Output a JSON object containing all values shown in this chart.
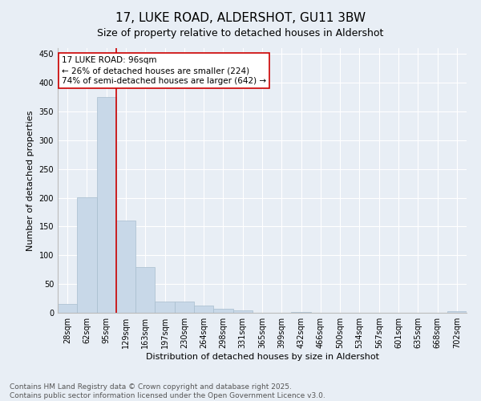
{
  "title": "17, LUKE ROAD, ALDERSHOT, GU11 3BW",
  "subtitle": "Size of property relative to detached houses in Aldershot",
  "xlabel": "Distribution of detached houses by size in Aldershot",
  "ylabel": "Number of detached properties",
  "categories": [
    "28sqm",
    "62sqm",
    "95sqm",
    "129sqm",
    "163sqm",
    "197sqm",
    "230sqm",
    "264sqm",
    "298sqm",
    "331sqm",
    "365sqm",
    "399sqm",
    "432sqm",
    "466sqm",
    "500sqm",
    "534sqm",
    "567sqm",
    "601sqm",
    "635sqm",
    "668sqm",
    "702sqm"
  ],
  "values": [
    16,
    201,
    375,
    160,
    80,
    20,
    20,
    12,
    7,
    4,
    0,
    0,
    1,
    0,
    0,
    0,
    0,
    0,
    0,
    0,
    3
  ],
  "bar_color": "#c8d8e8",
  "bar_edge_color": "#a8bece",
  "vline_color": "#cc0000",
  "vline_x_index": 2,
  "annotation_line1": "17 LUKE ROAD: 96sqm",
  "annotation_line2": "← 26% of detached houses are smaller (224)",
  "annotation_line3": "74% of semi-detached houses are larger (642) →",
  "annotation_box_facecolor": "#ffffff",
  "annotation_box_edgecolor": "#cc0000",
  "ylim": [
    0,
    460
  ],
  "yticks": [
    0,
    50,
    100,
    150,
    200,
    250,
    300,
    350,
    400,
    450
  ],
  "background_color": "#e8eef5",
  "plot_bg_color": "#e8eef5",
  "grid_color": "#ffffff",
  "footer_line1": "Contains HM Land Registry data © Crown copyright and database right 2025.",
  "footer_line2": "Contains public sector information licensed under the Open Government Licence v3.0.",
  "title_fontsize": 11,
  "subtitle_fontsize": 9,
  "axis_label_fontsize": 8,
  "tick_fontsize": 7,
  "annotation_fontsize": 7.5,
  "footer_fontsize": 6.5,
  "ylabel_fontsize": 8
}
